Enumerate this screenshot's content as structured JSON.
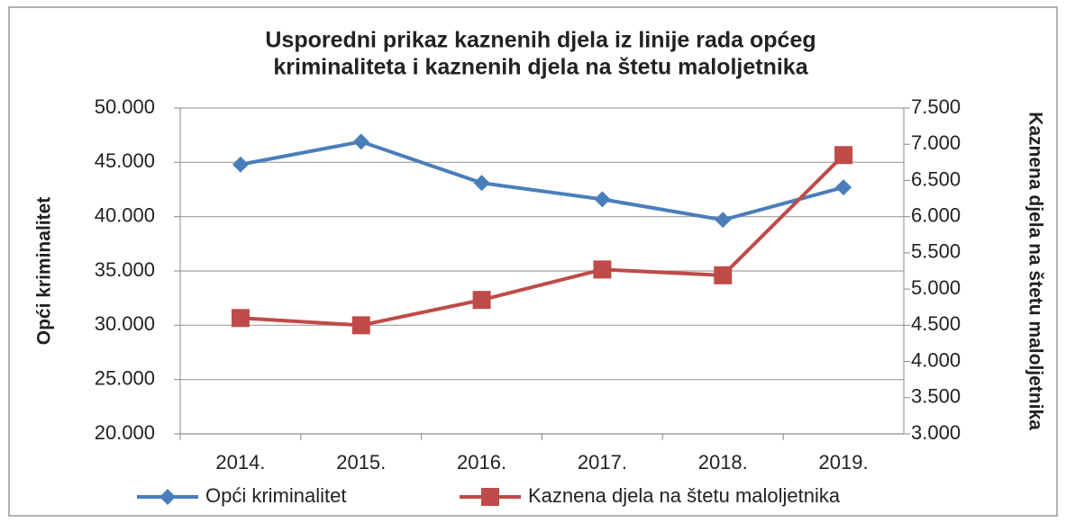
{
  "chart_data": {
    "type": "line",
    "title": [
      "Usporedni prikaz kaznenih djela iz linije rada općeg",
      "kriminaliteta i kaznenih djela na štetu maloljetnika"
    ],
    "y_label": "Opći kriminalitet",
    "y2_label": "Kaznena djela na štetu maloljetnika",
    "categories": [
      "2014.",
      "2015.",
      "2016.",
      "2017.",
      "2018.",
      "2019."
    ],
    "series": [
      {
        "name": "Opći kriminalitet",
        "color": "#4a7ebb",
        "marker": "diamond",
        "values": [
          44800,
          46900,
          43100,
          41600,
          39700,
          42700
        ]
      },
      {
        "name": "Kaznena djela na štetu maloljetnika",
        "color": "#be4b48",
        "marker": "square",
        "axis": "y2",
        "values": [
          4600,
          4500,
          4850,
          5270,
          5190,
          6850
        ]
      }
    ],
    "ylim": [
      20000,
      50000
    ],
    "yticks": [
      {
        "value": 20000,
        "label": "20.000"
      },
      {
        "value": 25000,
        "label": "25.000"
      },
      {
        "value": 30000,
        "label": "30.000"
      },
      {
        "value": 35000,
        "label": "35.000"
      },
      {
        "value": 40000,
        "label": "40.000"
      },
      {
        "value": 45000,
        "label": "45.000"
      },
      {
        "value": 50000,
        "label": "50.000"
      }
    ],
    "y2lim": [
      3000,
      7500
    ],
    "y2ticks": [
      {
        "value": 3000,
        "label": "3.000"
      },
      {
        "value": 3500,
        "label": "3.500"
      },
      {
        "value": 4000,
        "label": "4.000"
      },
      {
        "value": 4500,
        "label": "4.500"
      },
      {
        "value": 5000,
        "label": "5.000"
      },
      {
        "value": 5500,
        "label": "5.500"
      },
      {
        "value": 6000,
        "label": "6.000"
      },
      {
        "value": 6500,
        "label": "6.500"
      },
      {
        "value": 7000,
        "label": "7.000"
      },
      {
        "value": 7500,
        "label": "7.500"
      }
    ],
    "grid": true,
    "legend": "bottom"
  }
}
